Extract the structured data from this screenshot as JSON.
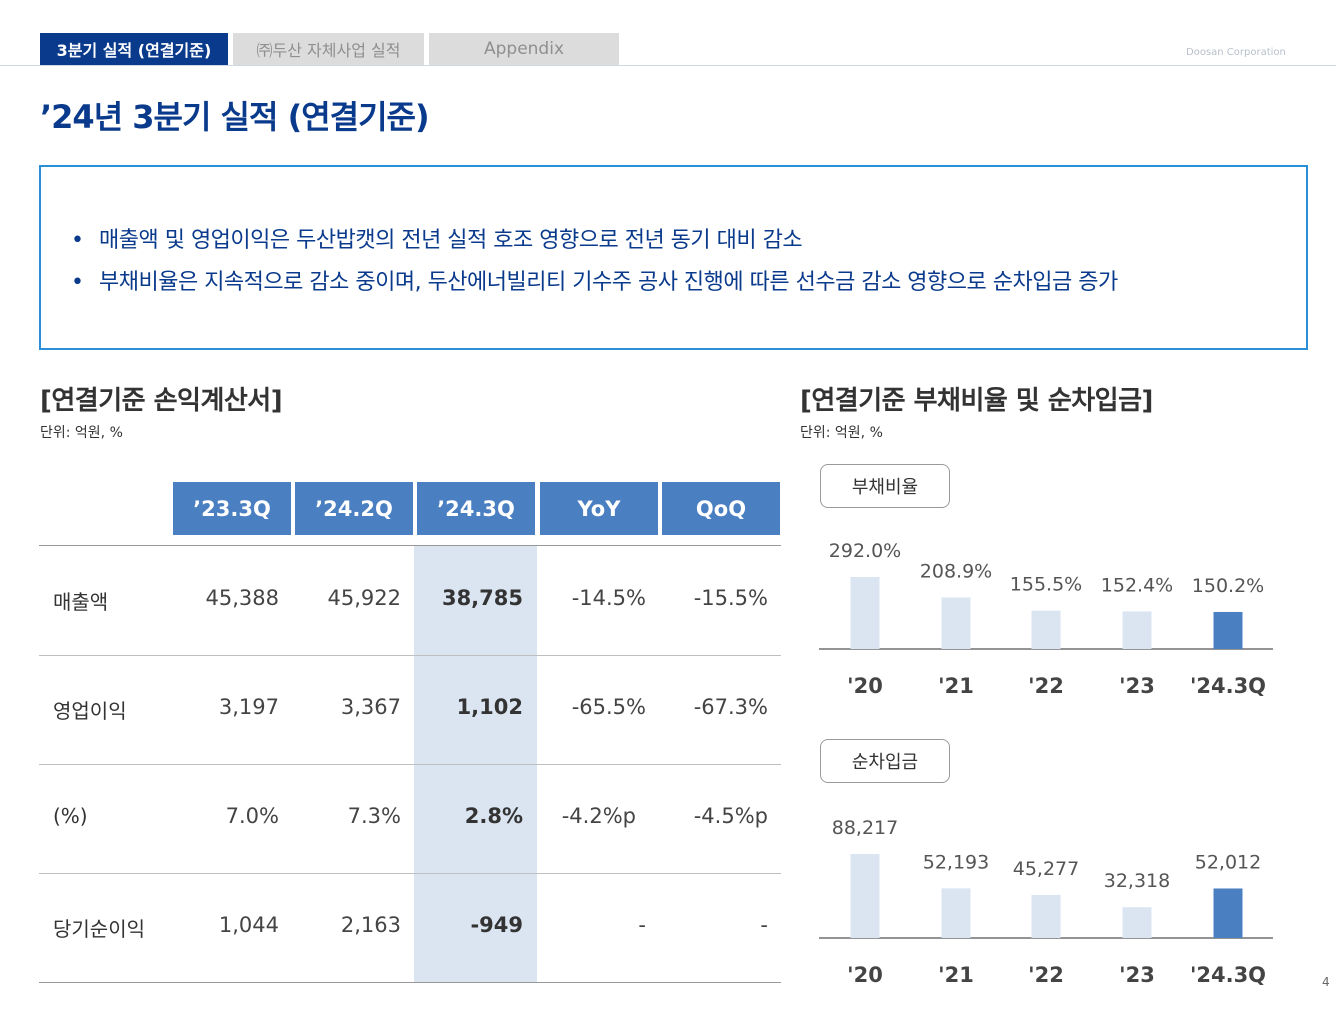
{
  "tabs": [
    {
      "label": "3분기 실적 (연결기준)"
    },
    {
      "label": "㈜두산 자체사업 실적"
    },
    {
      "label": "Appendix"
    }
  ],
  "company": "Doosan Corporation",
  "page_title": "’24년 3분기 실적 (연결기준)",
  "summary": [
    "매출액 및 영업이익은 두산밥캣의 전년 실적 호조 영향으로  전년 동기 대비 감소",
    "부채비율은 지속적으로 감소 중이며, 두산에너빌리티 기수주 공사 진행에 따른 선수금 감소 영향으로 순차입금 증가"
  ],
  "income": {
    "title": "[연결기준 손익계산서]",
    "unit": "단위: 억원, %",
    "headers": [
      "’23.3Q",
      "’24.2Q",
      "’24.3Q",
      "YoY",
      "QoQ"
    ],
    "rows": [
      {
        "label": "매출액",
        "cells": [
          "45,388",
          "45,922",
          "38,785",
          "-14.5%",
          "-15.5%"
        ]
      },
      {
        "label": "영업이익",
        "cells": [
          "3,197",
          "3,367",
          "1,102",
          "-65.5%",
          "-67.3%"
        ]
      },
      {
        "label": "(%)",
        "cells": [
          "7.0%",
          "7.3%",
          "2.8%",
          "-4.2%p",
          "-4.5%p"
        ]
      },
      {
        "label": "당기순이익",
        "cells": [
          "1,044",
          "2,163",
          "-949",
          "-",
          "-"
        ]
      }
    ]
  },
  "right": {
    "title": "[연결기준 부채비율 및 순차입금]",
    "unit": "단위: 억원, %"
  },
  "colors": {
    "bar": "#dbe5f1",
    "bar_highlight": "#4a7fc1",
    "navy": "#0a3a8c"
  },
  "chart_data": [
    {
      "type": "bar",
      "title": "부채비율",
      "categories": [
        "'20",
        "'21",
        "'22",
        "'23",
        "'24.3Q"
      ],
      "values": [
        292.0,
        208.9,
        155.5,
        152.4,
        150.2
      ],
      "labels": [
        "292.0%",
        "208.9%",
        "155.5%",
        "152.4%",
        "150.2%"
      ],
      "highlight_index": 4
    },
    {
      "type": "bar",
      "title": "순차입금",
      "categories": [
        "'20",
        "'21",
        "'22",
        "'23",
        "'24.3Q"
      ],
      "values": [
        88217,
        52193,
        45277,
        32318,
        52012
      ],
      "labels": [
        "88,217",
        "52,193",
        "45,277",
        "32,318",
        "52,012"
      ],
      "highlight_index": 4
    }
  ],
  "page_number": "4"
}
